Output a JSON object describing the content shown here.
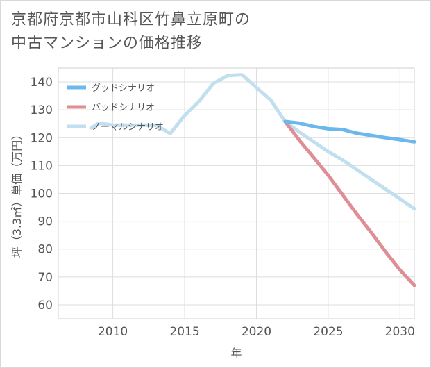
{
  "chart_data": {
    "type": "line",
    "title": "京都府京都市山科区竹鼻立原町の中古マンションの価格推移",
    "title_lines": [
      "京都府京都市山科区竹鼻立原町の",
      "中古マンションの価格推移"
    ],
    "xlabel": "年",
    "ylabel": "坪（3.3㎡）単価（万円）",
    "xlim": [
      2006.2,
      2031
    ],
    "ylim": [
      55,
      145
    ],
    "xticks": [
      2010,
      2015,
      2020,
      2025,
      2030
    ],
    "yticks": [
      60,
      70,
      80,
      90,
      100,
      110,
      120,
      130,
      140
    ],
    "grid": true,
    "legend_position": "top-left",
    "series": [
      {
        "name": "グッドシナリオ",
        "color": "#6bb8ec",
        "x": [
          2022,
          2023,
          2024,
          2025,
          2026,
          2027,
          2028,
          2029,
          2030,
          2031
        ],
        "values": [
          125.8,
          125.2,
          124.0,
          123.2,
          122.9,
          121.6,
          120.8,
          120.0,
          119.3,
          118.5
        ]
      },
      {
        "name": "バッドシナリオ",
        "color": "#df8e96",
        "x": [
          2022,
          2023,
          2024,
          2025,
          2026,
          2027,
          2028,
          2029,
          2030,
          2031
        ],
        "values": [
          125.8,
          119.0,
          112.8,
          106.5,
          99.5,
          92.5,
          86.0,
          79.0,
          72.5,
          67.0
        ]
      },
      {
        "name": "ノーマルシナリオ",
        "color": "#c1dfee",
        "x": [
          2008.5,
          2009,
          2010,
          2011,
          2012,
          2013,
          2014,
          2015,
          2016,
          2017,
          2018,
          2019,
          2020,
          2021,
          2022,
          2023,
          2024,
          2025,
          2026,
          2027,
          2028,
          2029,
          2030,
          2031
        ],
        "values": [
          123.5,
          125.2,
          124.5,
          124.5,
          124.5,
          124.5,
          121.5,
          128.0,
          133.0,
          139.5,
          142.3,
          142.6,
          138.0,
          133.5,
          125.8,
          122.0,
          118.5,
          115.0,
          112.0,
          108.5,
          105.0,
          101.5,
          98.0,
          94.5
        ]
      }
    ]
  }
}
